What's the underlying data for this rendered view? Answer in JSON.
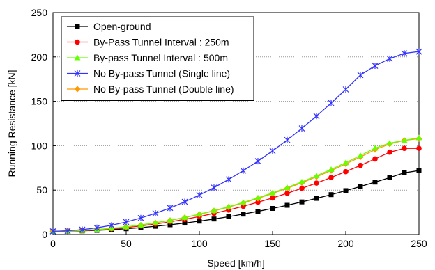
{
  "chart_data": {
    "type": "line",
    "title": "",
    "xlabel": "Speed [km/h]",
    "ylabel": "Running Resistance [kN]",
    "xlim": [
      0,
      250
    ],
    "ylim": [
      0,
      250
    ],
    "xticks": [
      "0",
      "50",
      "100",
      "150",
      "200",
      "250"
    ],
    "yticks": [
      "0",
      "50",
      "100",
      "150",
      "200",
      "250"
    ],
    "grid": "horizontal-dotted",
    "legend_position": "top-left",
    "x": [
      0,
      10,
      20,
      30,
      40,
      50,
      60,
      70,
      80,
      90,
      100,
      110,
      120,
      130,
      140,
      150,
      160,
      170,
      180,
      190,
      200,
      210,
      220,
      230,
      240,
      250
    ],
    "series": [
      {
        "name": "Open-ground",
        "color": "#000000",
        "marker": "square",
        "values": [
          3.6,
          3.8,
          4.1,
          4.7,
          5.5,
          6.5,
          7.8,
          9.3,
          11.0,
          12.9,
          15.1,
          17.5,
          20.1,
          23.0,
          26.1,
          29.4,
          32.9,
          36.7,
          40.7,
          44.9,
          49.4,
          54.1,
          59.0,
          64.1,
          69.5,
          72.0
        ]
      },
      {
        "name": "By-Pass Tunnel Interval : 250m",
        "color": "#ff0000",
        "marker": "circle",
        "values": [
          3.6,
          3.9,
          4.4,
          5.2,
          6.4,
          7.9,
          9.7,
          11.8,
          14.3,
          17.1,
          20.3,
          23.8,
          27.6,
          31.8,
          36.3,
          41.2,
          46.4,
          52.0,
          57.9,
          64.2,
          70.8,
          77.8,
          85.1,
          92.7,
          97.0,
          97.0
        ]
      },
      {
        "name": "By-pass Tunnel Interval : 500m",
        "color": "#66ff00",
        "marker": "triangle",
        "values": [
          3.6,
          4.0,
          4.6,
          5.6,
          7.0,
          8.7,
          10.8,
          13.3,
          16.1,
          19.3,
          22.9,
          26.9,
          31.3,
          36.1,
          41.3,
          46.9,
          52.9,
          59.3,
          66.1,
          73.3,
          80.9,
          88.9,
          97.3,
          103.0,
          106.0,
          109.0
        ]
      },
      {
        "name": "No By-pass Tunnel (Single line)",
        "color": "#3333ff",
        "marker": "asterisk",
        "values": [
          3.6,
          4.2,
          5.5,
          7.6,
          10.5,
          14.1,
          18.6,
          23.9,
          29.9,
          36.8,
          44.4,
          52.8,
          62.0,
          71.9,
          82.6,
          94.2,
          106.4,
          119.5,
          133.4,
          148.0,
          163.4,
          179.6,
          190.0,
          198.0,
          204.0,
          206.0
        ]
      },
      {
        "name": "No By-pass Tunnel (Double line)",
        "color": "#ff9900",
        "marker": "diamond",
        "values": [
          3.6,
          4.0,
          4.6,
          5.6,
          6.9,
          8.6,
          10.7,
          13.1,
          15.9,
          19.1,
          22.7,
          26.6,
          30.9,
          35.6,
          40.7,
          46.2,
          52.0,
          58.3,
          65.0,
          72.0,
          79.5,
          87.3,
          95.6,
          102.0,
          106.0,
          108.0
        ]
      }
    ]
  }
}
